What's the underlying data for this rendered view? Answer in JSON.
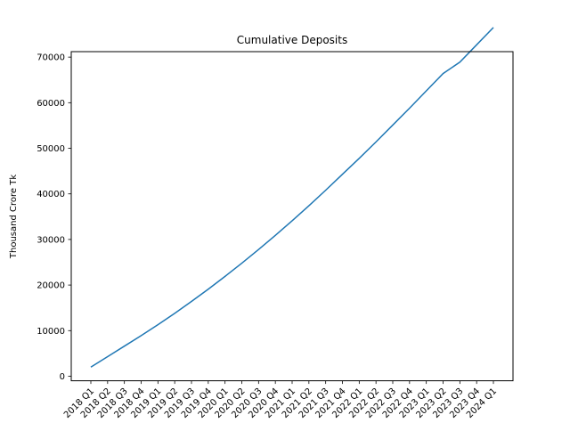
{
  "chart_data": {
    "type": "line",
    "title": "Cumulative Deposits",
    "xlabel": "",
    "ylabel": "Thousand Crore Tk",
    "categories": [
      "2018 Q1",
      "2018 Q2",
      "2018 Q3",
      "2018 Q4",
      "2019 Q1",
      "2019 Q2",
      "2019 Q3",
      "2019 Q4",
      "2020 Q1",
      "2020 Q2",
      "2020 Q3",
      "2020 Q4",
      "2021 Q1",
      "2021 Q2",
      "2021 Q3",
      "2021 Q4",
      "2022 Q1",
      "2022 Q2",
      "2022 Q3",
      "2022 Q4",
      "2023 Q1",
      "2023 Q2",
      "2023 Q3",
      "2023 Q4",
      "2024 Q1"
    ],
    "series": [
      {
        "values": [
          2000,
          4300,
          6600,
          8900,
          11300,
          13800,
          16400,
          19100,
          21900,
          24800,
          27800,
          30900,
          34100,
          37400,
          40800,
          44300,
          47800,
          51400,
          55100,
          58800,
          62600,
          66400,
          68900,
          72700,
          76500
        ],
        "color": "#1f77b4"
      }
    ],
    "ylim": [
      -1000,
      71200
    ],
    "yticks": [
      0,
      10000,
      20000,
      30000,
      40000,
      50000,
      60000,
      70000
    ],
    "grid": false,
    "legend": "none"
  }
}
